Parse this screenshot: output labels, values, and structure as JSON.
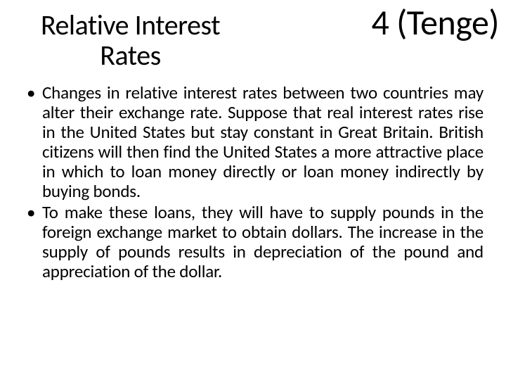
{
  "header": {
    "title_left_line1": "Relative Interest",
    "title_left_line2": "Rates",
    "title_right": "4 (Tenge)"
  },
  "bullets": [
    "Changes in relative interest rates between two countries may alter their exchange rate. Suppose that real interest rates rise in the United States but stay constant in Great Britain. British citizens will then find the United States a more attractive place in which to loan money directly or loan money indirectly by buying bonds.",
    "To make these loans, they will have to supply pounds in the foreign exchange market to obtain dollars. The increase in the supply of pounds results in depreciation of the pound and appreciation of the dollar."
  ],
  "style": {
    "background_color": "#ffffff",
    "text_color": "#000000",
    "title_left_fontsize": 40,
    "title_right_fontsize": 50,
    "body_fontsize": 25,
    "font_family": "Calibri"
  }
}
